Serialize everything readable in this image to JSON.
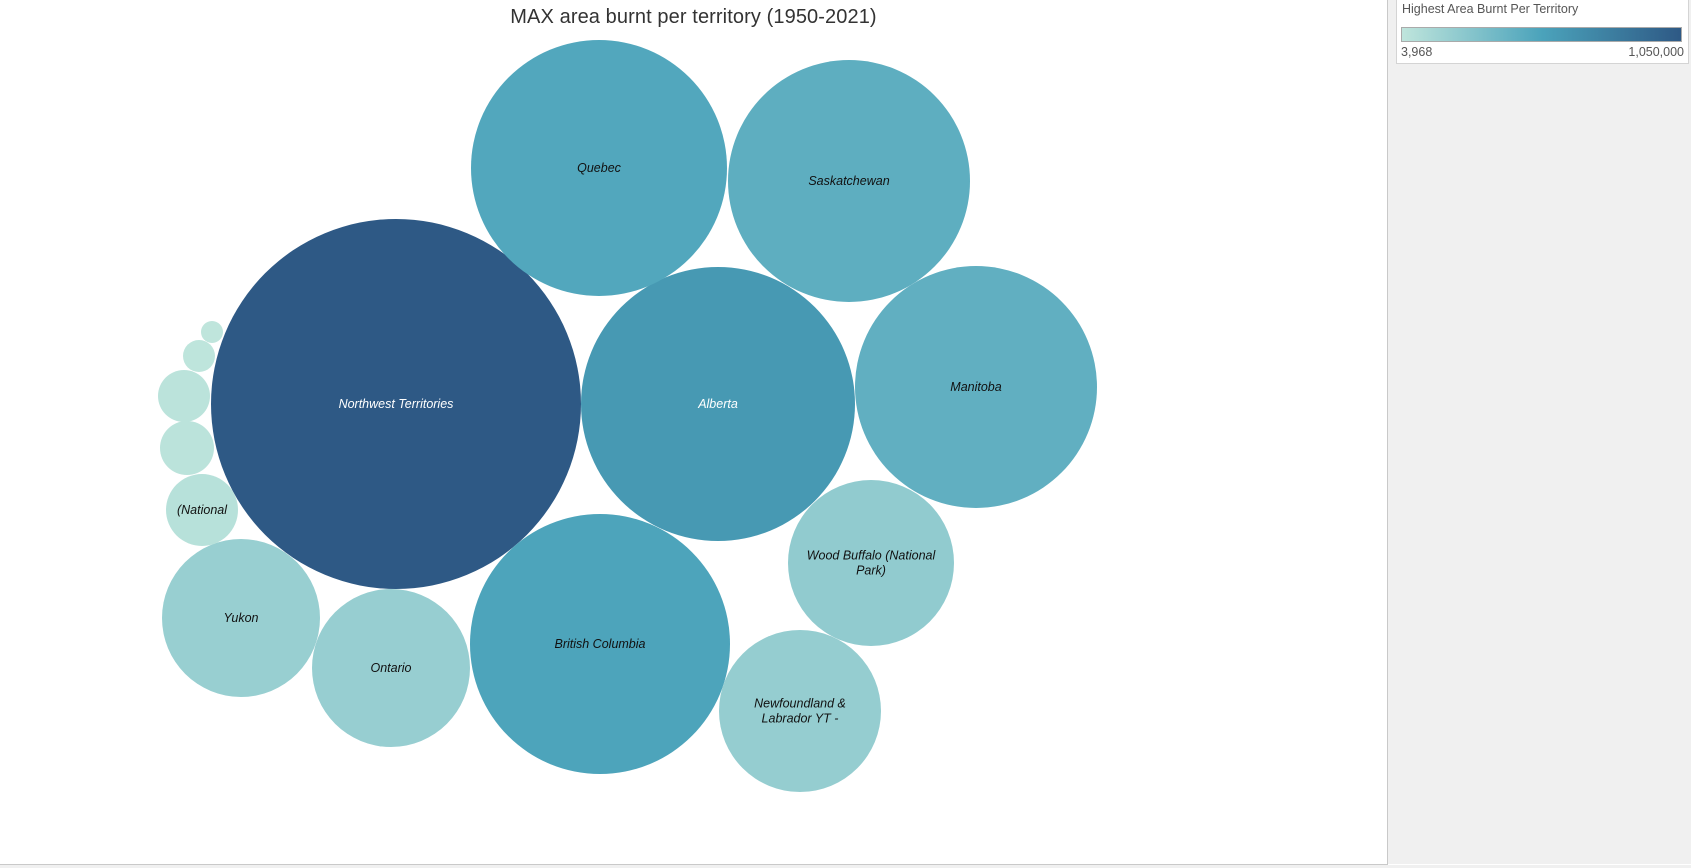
{
  "chart_data": {
    "type": "packed-bubble",
    "title": "MAX area burnt per territory  (1950-2021)",
    "measure": "Highest Area Burnt Per Territory",
    "color_scale": {
      "label": "Highest Area Burnt Per Territory",
      "min": 3968,
      "max": 1050000,
      "min_label": "3,968",
      "max_label": "1,050,000",
      "min_color": "#bfe5dc",
      "mid_color": "#4ba3bb",
      "max_color": "#2e5985"
    },
    "bubbles": [
      {
        "label": "Northwest Territories",
        "value": 1050000
      },
      {
        "label": "Alberta",
        "value": 600000
      },
      {
        "label": "British Columbia",
        "value": 520000
      },
      {
        "label": "Quebec",
        "value": 495000
      },
      {
        "label": "Saskatchewan",
        "value": 440000
      },
      {
        "label": "Manitoba",
        "value": 430000
      },
      {
        "label": "Wood Buffalo (National Park)",
        "value": 210000
      },
      {
        "label": "Newfoundland & Labrador YT -",
        "value": 195000
      },
      {
        "label": "Ontario",
        "value": 185000
      },
      {
        "label": "Yukon",
        "value": 180000
      },
      {
        "label": "(National",
        "value": 39000
      },
      {
        "label": "",
        "value": 23000
      },
      {
        "label": "",
        "value": 20000
      },
      {
        "label": "",
        "value": 7000
      },
      {
        "label": "",
        "value": 3968
      }
    ]
  }
}
